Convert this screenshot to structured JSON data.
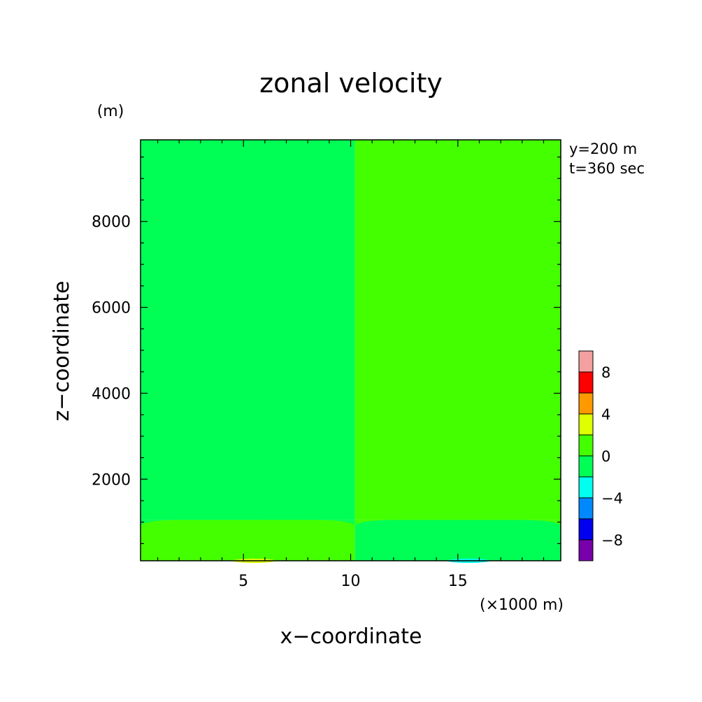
{
  "chart_data": {
    "type": "heatmap",
    "title": "zonal velocity",
    "xlabel": "x−coordinate",
    "ylabel": "z−coordinate",
    "x_unit": "(×1000 m)",
    "y_unit": "(m)",
    "annotations": [
      "y=200 m",
      "t=360 sec"
    ],
    "xlim": [
      0.2,
      19.8
    ],
    "ylim": [
      100,
      9900
    ],
    "x_ticks": [
      5,
      10,
      15
    ],
    "y_ticks": [
      2000,
      4000,
      6000,
      8000
    ],
    "x_tick_labels": [
      "5",
      "10",
      "15"
    ],
    "y_tick_labels": [
      "2000",
      "4000",
      "6000",
      "8000"
    ],
    "field_regions": [
      {
        "name": "upper-left",
        "value_bin": [
          -2,
          0
        ],
        "x_range": [
          0.2,
          10.2
        ],
        "z_range": [
          1050,
          9900
        ]
      },
      {
        "name": "upper-right",
        "value_bin": [
          0,
          2
        ],
        "x_range": [
          10.2,
          19.8
        ],
        "z_range": [
          1050,
          9900
        ]
      },
      {
        "name": "lower-left",
        "value_bin": [
          0,
          2
        ],
        "x_range": [
          0.2,
          10.2
        ],
        "z_range": [
          100,
          1050
        ]
      },
      {
        "name": "lower-right",
        "value_bin": [
          -2,
          0
        ],
        "x_range": [
          10.2,
          19.8
        ],
        "z_range": [
          100,
          1050
        ]
      },
      {
        "name": "small-positive-patch",
        "value_bin": [
          2,
          4
        ],
        "x_range": [
          4.5,
          6.5
        ],
        "z_range": [
          100,
          150
        ]
      },
      {
        "name": "small-negative-patch",
        "value_bin": [
          -4,
          -2
        ],
        "x_range": [
          14.5,
          16.5
        ],
        "z_range": [
          100,
          150
        ]
      }
    ],
    "colorbar": {
      "bins": [
        {
          "range": [
            8,
            10
          ],
          "color": "#f5a0a0"
        },
        {
          "range": [
            6,
            8
          ],
          "color": "#ff0000"
        },
        {
          "range": [
            4,
            6
          ],
          "color": "#ff9900"
        },
        {
          "range": [
            2,
            4
          ],
          "color": "#ddff00"
        },
        {
          "range": [
            0,
            2
          ],
          "color": "#44ff00"
        },
        {
          "range": [
            -2,
            0
          ],
          "color": "#00ff55"
        },
        {
          "range": [
            -4,
            -2
          ],
          "color": "#00ffee"
        },
        {
          "range": [
            -6,
            -4
          ],
          "color": "#0088ff"
        },
        {
          "range": [
            -8,
            -6
          ],
          "color": "#0000ee"
        },
        {
          "range": [
            -10,
            -8
          ],
          "color": "#7700aa"
        }
      ],
      "tick_values": [
        8,
        4,
        0,
        -4,
        -8
      ],
      "tick_labels": [
        "8",
        "4",
        "0",
        "−4",
        "−8"
      ]
    },
    "grid": false
  }
}
